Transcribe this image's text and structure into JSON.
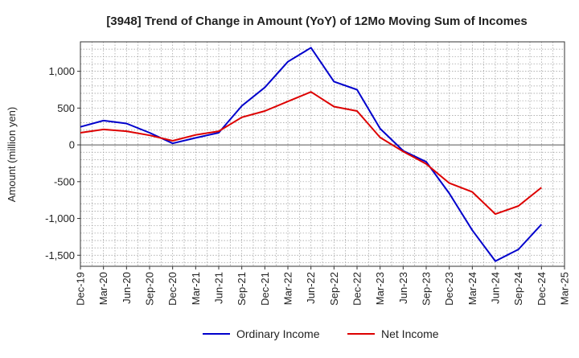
{
  "chart_data": {
    "type": "line",
    "title": "[3948]  Trend of Change in Amount (YoY) of 12Mo Moving Sum of Incomes",
    "xlabel": "",
    "ylabel": "Amount (million yen)",
    "categories": [
      "Dec-19",
      "Mar-20",
      "Jun-20",
      "Sep-20",
      "Dec-20",
      "Mar-21",
      "Jun-21",
      "Sep-21",
      "Dec-21",
      "Mar-22",
      "Jun-22",
      "Sep-22",
      "Dec-22",
      "Mar-23",
      "Jun-23",
      "Sep-23",
      "Dec-23",
      "Mar-24",
      "Jun-24",
      "Sep-24",
      "Dec-24",
      "Mar-25"
    ],
    "ylim": [
      -1650,
      1400
    ],
    "yticks": [
      -1500,
      -1000,
      -500,
      0,
      500,
      1000
    ],
    "ytick_labels": [
      "-1,500",
      "-1,000",
      "-500",
      "0",
      "500",
      "1,000"
    ],
    "grid": true,
    "legend_position": "bottom",
    "series": [
      {
        "name": "Ordinary Income",
        "color": "#0000cc",
        "values": [
          245,
          330,
          290,
          165,
          20,
          95,
          165,
          530,
          780,
          1130,
          1320,
          860,
          750,
          220,
          -80,
          -230,
          -660,
          -1160,
          -1580,
          -1420,
          -1080,
          null
        ]
      },
      {
        "name": "Net Income",
        "color": "#dd0000",
        "values": [
          165,
          210,
          185,
          130,
          55,
          135,
          185,
          375,
          460,
          590,
          720,
          520,
          460,
          100,
          -90,
          -260,
          -520,
          -640,
          -940,
          -830,
          -580,
          null
        ]
      }
    ]
  }
}
